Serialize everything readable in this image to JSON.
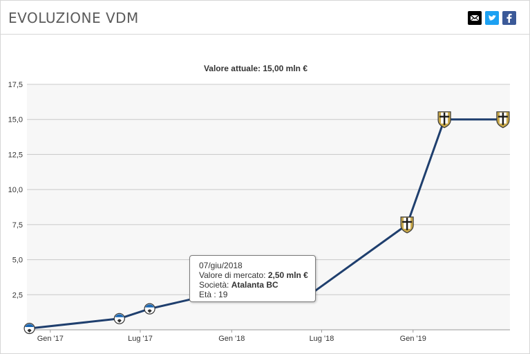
{
  "header": {
    "title": "EVOLUZIONE VDM",
    "share": [
      {
        "name": "email-share",
        "icon": "envelope-icon"
      },
      {
        "name": "twitter-share",
        "icon": "twitter-bird-icon"
      },
      {
        "name": "facebook-share",
        "icon": "facebook-f-icon"
      }
    ]
  },
  "tooltip": {
    "date": "07/giu/2018",
    "value_label": "Valore di mercato: ",
    "value": "2,50 mln €",
    "club_label": "Società: ",
    "club": "Atalanta BC",
    "age_label": "Età : ",
    "age": "19"
  },
  "colors": {
    "line": "#1f3f6e",
    "grid": "#c8c8c8",
    "plot_bg": "#f7f7f7",
    "atalanta": "#1b67b2",
    "parma_gold": "#c8a84a"
  },
  "chart_data": {
    "type": "line",
    "title": "Valore attuale: 15,00 mln €",
    "xlabel": "",
    "ylabel": "",
    "ylim": [
      0,
      17.5
    ],
    "grid": true,
    "yticks": [
      2.5,
      5.0,
      7.5,
      10.0,
      12.5,
      15.0,
      17.5
    ],
    "ytick_labels": [
      "2,5",
      "5,0",
      "7,5",
      "10,0",
      "12,5",
      "15,0",
      "17,5"
    ],
    "xticks": [
      "2017-01-01",
      "2017-07-01",
      "2018-01-01",
      "2018-07-01",
      "2019-01-01"
    ],
    "xtick_labels": [
      "Gen '17",
      "Lug '17",
      "Gen '18",
      "Lug '18",
      "Gen '19"
    ],
    "xlim": [
      "2016-11-15",
      "2019-07-15"
    ],
    "series": [
      {
        "points": [
          {
            "x": "2016-11-20",
            "y": 0.1,
            "club": "Atalanta BC"
          },
          {
            "x": "2017-05-20",
            "y": 0.8,
            "club": "Atalanta BC"
          },
          {
            "x": "2017-07-20",
            "y": 1.5,
            "club": "Atalanta BC"
          },
          {
            "x": "2017-11-20",
            "y": 2.5,
            "club": "Atalanta BC"
          },
          {
            "x": "2018-01-05",
            "y": 2.5,
            "club": "Atalanta BC"
          },
          {
            "x": "2018-06-07",
            "y": 2.5,
            "club": "Atalanta BC"
          },
          {
            "x": "2018-12-20",
            "y": 7.5,
            "club": "Parma"
          },
          {
            "x": "2019-03-05",
            "y": 15.0,
            "club": "Parma"
          },
          {
            "x": "2019-07-01",
            "y": 15.0,
            "club": "Parma"
          }
        ]
      }
    ]
  }
}
